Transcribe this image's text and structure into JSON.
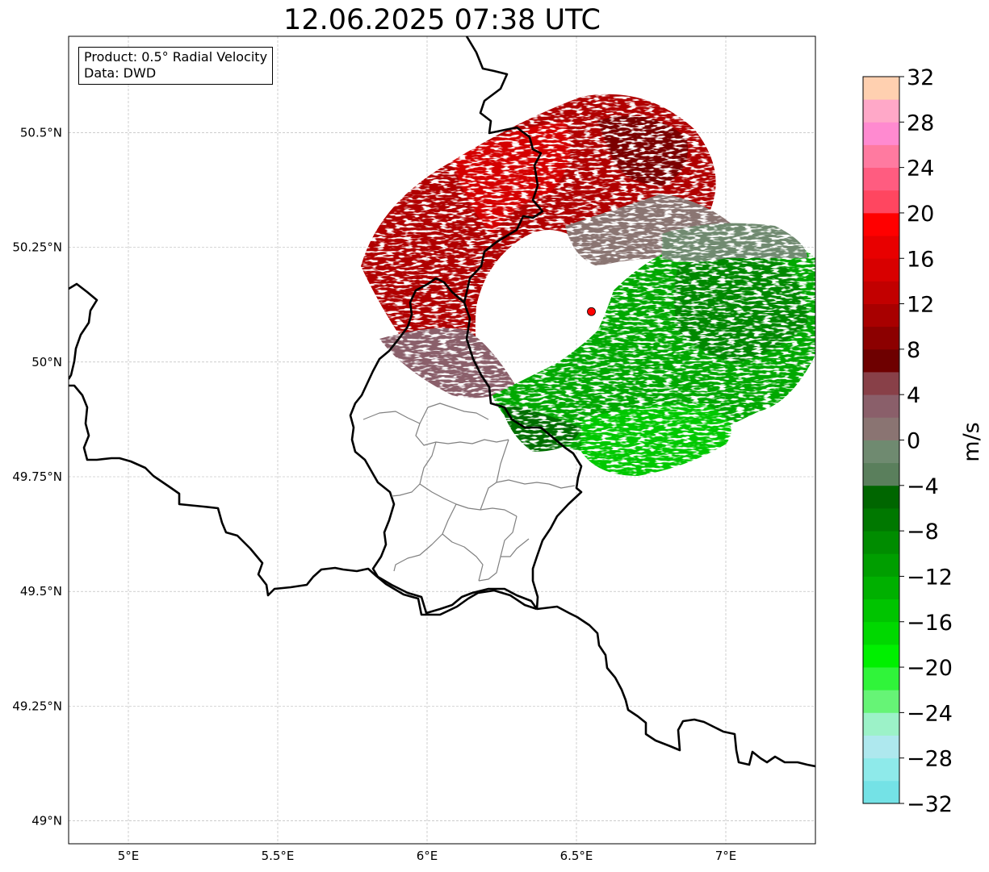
{
  "title": "12.06.2025 07:38 UTC",
  "info_box": {
    "product_line": "Product: 0.5° Radial Velocity",
    "data_line": "Data: DWD"
  },
  "map": {
    "lon_range": [
      4.8,
      7.3
    ],
    "lat_range": [
      48.95,
      50.71
    ],
    "lon_ticks": [
      {
        "value": 5.0,
        "label": "5°E"
      },
      {
        "value": 5.5,
        "label": "5.5°E"
      },
      {
        "value": 6.0,
        "label": "6°E"
      },
      {
        "value": 6.5,
        "label": "6.5°E"
      },
      {
        "value": 7.0,
        "label": "7°E"
      }
    ],
    "lat_ticks": [
      {
        "value": 50.5,
        "label": "50.5°N"
      },
      {
        "value": 50.25,
        "label": "50.25°N"
      },
      {
        "value": 50.0,
        "label": "50°N"
      },
      {
        "value": 49.75,
        "label": "49.75°N"
      },
      {
        "value": 49.5,
        "label": "49.5°N"
      },
      {
        "value": 49.25,
        "label": "49.25°N"
      },
      {
        "value": 49.0,
        "label": "49°N"
      }
    ],
    "radar_site": {
      "lon": 6.55,
      "lat": 50.11
    },
    "grid_on": true
  },
  "colorbar": {
    "unit_label": "m/s",
    "min": -32,
    "max": 32,
    "tick_labels": [
      {
        "value": 32,
        "label": "32"
      },
      {
        "value": 28,
        "label": "28"
      },
      {
        "value": 24,
        "label": "24"
      },
      {
        "value": 20,
        "label": "20"
      },
      {
        "value": 16,
        "label": "16"
      },
      {
        "value": 12,
        "label": "12"
      },
      {
        "value": 8,
        "label": "8"
      },
      {
        "value": 4,
        "label": "4"
      },
      {
        "value": 0,
        "label": "0"
      },
      {
        "value": -4,
        "label": "−4"
      },
      {
        "value": -8,
        "label": "−8"
      },
      {
        "value": -12,
        "label": "−12"
      },
      {
        "value": -16,
        "label": "−16"
      },
      {
        "value": -20,
        "label": "−20"
      },
      {
        "value": -24,
        "label": "−24"
      },
      {
        "value": -28,
        "label": "−28"
      },
      {
        "value": -32,
        "label": "−32"
      }
    ],
    "colors_bottom_to_top": [
      "#74e2e6",
      "#8eeaea",
      "#aee8ee",
      "#9cf2c8",
      "#66f476",
      "#30f43a",
      "#00f000",
      "#00d800",
      "#00c400",
      "#00b000",
      "#009e00",
      "#008c00",
      "#007800",
      "#006600",
      "#5a7f5c",
      "#6f8a70",
      "#8a7472",
      "#8a5f6a",
      "#884048",
      "#6e0000",
      "#8c0000",
      "#a80000",
      "#c20000",
      "#d80000",
      "#e80000",
      "#ff0000",
      "#ff4660",
      "#ff5c80",
      "#ff7aa0",
      "#ff8ad0",
      "#ffa8c8",
      "#ffd0b0"
    ]
  },
  "colors": {
    "border_line": "#000000",
    "admin_line": "#808080",
    "grid_line": "#b0b0b0",
    "radar_site": "#ff0000"
  }
}
